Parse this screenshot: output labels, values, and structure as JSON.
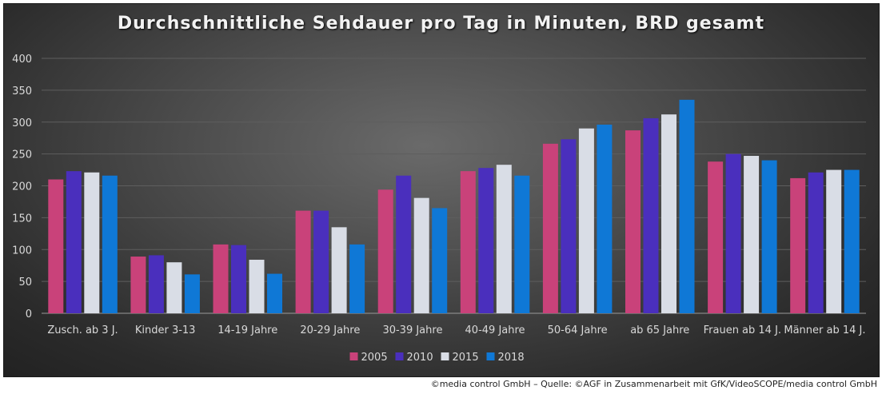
{
  "chart_data": {
    "type": "bar",
    "title": "Durchschnittliche Sehdauer pro Tag in Minuten, BRD gesamt",
    "xlabel": "",
    "ylabel": "",
    "ylim": [
      0,
      400
    ],
    "yticks": [
      0,
      50,
      100,
      150,
      200,
      250,
      300,
      350,
      400
    ],
    "grid": true,
    "legend_position": "bottom",
    "categories": [
      "Zusch. ab 3 J.",
      "Kinder 3-13",
      "14-19 Jahre",
      "20-29 Jahre",
      "30-39 Jahre",
      "40-49 Jahre",
      "50-64 Jahre",
      "ab 65 Jahre",
      "Frauen ab 14 J.",
      "Männer ab 14 J."
    ],
    "series": [
      {
        "name": "2005",
        "color": "#c9427a",
        "values": [
          210,
          89,
          108,
          161,
          194,
          223,
          266,
          287,
          238,
          212
        ]
      },
      {
        "name": "2010",
        "color": "#4a2fbd",
        "values": [
          223,
          91,
          107,
          161,
          216,
          228,
          273,
          306,
          250,
          221
        ]
      },
      {
        "name": "2015",
        "color": "#d9dde6",
        "values": [
          221,
          80,
          84,
          135,
          181,
          233,
          290,
          312,
          247,
          225
        ]
      },
      {
        "name": "2018",
        "color": "#0f78d6",
        "values": [
          216,
          61,
          62,
          108,
          165,
          216,
          296,
          335,
          240,
          225
        ]
      }
    ]
  },
  "credit": "©media control GmbH – Quelle: ©AGF in Zusammenarbeit mit GfK/VideoSCOPE/media  control GmbH"
}
